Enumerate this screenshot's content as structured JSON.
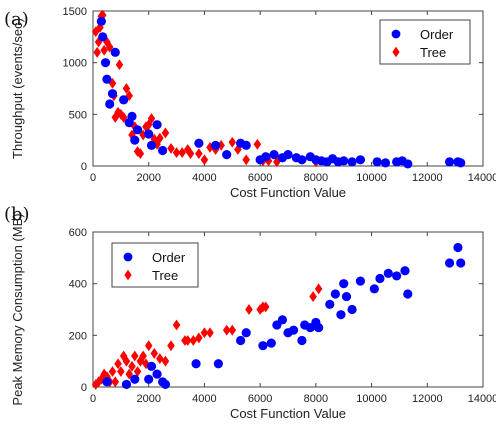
{
  "chart_data": [
    {
      "type": "scatter",
      "panel_label": "(a)",
      "xlabel": "Cost Function Value",
      "ylabel": "Throughput (events/sec)",
      "xlim": [
        0,
        14000
      ],
      "ylim": [
        0,
        1500
      ],
      "xticks": [
        0,
        2000,
        4000,
        6000,
        8000,
        10000,
        12000,
        14000
      ],
      "yticks": [
        0,
        500,
        1000,
        1500
      ],
      "legend": "top-right",
      "grid": false,
      "series": [
        {
          "name": "Order",
          "marker": "circle",
          "color": "#0000ff",
          "points": [
            [
              300,
              1400
            ],
            [
              350,
              1250
            ],
            [
              450,
              1000
            ],
            [
              500,
              840
            ],
            [
              600,
              600
            ],
            [
              700,
              700
            ],
            [
              800,
              1100
            ],
            [
              1100,
              640
            ],
            [
              1300,
              420
            ],
            [
              1400,
              480
            ],
            [
              1500,
              250
            ],
            [
              1600,
              350
            ],
            [
              2000,
              310
            ],
            [
              2100,
              200
            ],
            [
              2300,
              400
            ],
            [
              2500,
              150
            ],
            [
              3800,
              220
            ],
            [
              4400,
              200
            ],
            [
              4800,
              110
            ],
            [
              5300,
              220
            ],
            [
              5500,
              200
            ],
            [
              6000,
              60
            ],
            [
              6200,
              90
            ],
            [
              6500,
              110
            ],
            [
              6800,
              80
            ],
            [
              7000,
              110
            ],
            [
              7300,
              80
            ],
            [
              7500,
              60
            ],
            [
              7800,
              90
            ],
            [
              8000,
              60
            ],
            [
              8200,
              50
            ],
            [
              8400,
              40
            ],
            [
              8600,
              70
            ],
            [
              8800,
              40
            ],
            [
              9000,
              50
            ],
            [
              9300,
              40
            ],
            [
              9600,
              60
            ],
            [
              10200,
              40
            ],
            [
              10500,
              30
            ],
            [
              10900,
              40
            ],
            [
              11100,
              50
            ],
            [
              11300,
              20
            ],
            [
              12800,
              40
            ],
            [
              13100,
              40
            ],
            [
              13200,
              30
            ]
          ]
        },
        {
          "name": "Tree",
          "marker": "diamond",
          "color": "#ff0000",
          "points": [
            [
              100,
              1300
            ],
            [
              150,
              1100
            ],
            [
              200,
              1200
            ],
            [
              250,
              1340
            ],
            [
              300,
              1450
            ],
            [
              350,
              1460
            ],
            [
              400,
              1120
            ],
            [
              500,
              1200
            ],
            [
              600,
              1150
            ],
            [
              700,
              800
            ],
            [
              750,
              680
            ],
            [
              800,
              470
            ],
            [
              900,
              520
            ],
            [
              950,
              980
            ],
            [
              1000,
              500
            ],
            [
              1100,
              470
            ],
            [
              1200,
              750
            ],
            [
              1300,
              680
            ],
            [
              1400,
              300
            ],
            [
              1500,
              380
            ],
            [
              1600,
              140
            ],
            [
              1700,
              120
            ],
            [
              1800,
              300
            ],
            [
              1900,
              380
            ],
            [
              2000,
              400
            ],
            [
              2100,
              460
            ],
            [
              2200,
              260
            ],
            [
              2300,
              210
            ],
            [
              2400,
              270
            ],
            [
              2600,
              320
            ],
            [
              2800,
              170
            ],
            [
              3000,
              130
            ],
            [
              3200,
              130
            ],
            [
              3400,
              160
            ],
            [
              3500,
              120
            ],
            [
              3800,
              120
            ],
            [
              4000,
              60
            ],
            [
              4200,
              180
            ],
            [
              4400,
              160
            ],
            [
              4600,
              200
            ],
            [
              5000,
              230
            ],
            [
              5200,
              160
            ],
            [
              5500,
              60
            ],
            [
              5900,
              210
            ],
            [
              6100,
              50
            ],
            [
              6300,
              50
            ],
            [
              6600,
              40
            ],
            [
              8000,
              40
            ]
          ]
        }
      ]
    },
    {
      "type": "scatter",
      "panel_label": "(b)",
      "xlabel": "Cost Function Value",
      "ylabel": "Peak Memory Consumption (MB)",
      "xlim": [
        0,
        14000
      ],
      "ylim": [
        0,
        600
      ],
      "xticks": [
        0,
        2000,
        4000,
        6000,
        8000,
        10000,
        12000,
        14000
      ],
      "yticks": [
        0,
        200,
        400,
        600
      ],
      "legend": "top-left",
      "grid": false,
      "series": [
        {
          "name": "Order",
          "marker": "circle",
          "color": "#0000ff",
          "points": [
            [
              500,
              20
            ],
            [
              1200,
              10
            ],
            [
              1500,
              30
            ],
            [
              2000,
              30
            ],
            [
              2100,
              80
            ],
            [
              2300,
              50
            ],
            [
              2500,
              20
            ],
            [
              2600,
              10
            ],
            [
              3700,
              90
            ],
            [
              4500,
              90
            ],
            [
              5300,
              180
            ],
            [
              5500,
              210
            ],
            [
              6100,
              160
            ],
            [
              6400,
              170
            ],
            [
              6600,
              240
            ],
            [
              6800,
              260
            ],
            [
              7000,
              210
            ],
            [
              7200,
              220
            ],
            [
              7500,
              180
            ],
            [
              7600,
              240
            ],
            [
              7800,
              230
            ],
            [
              8000,
              250
            ],
            [
              8100,
              230
            ],
            [
              8500,
              320
            ],
            [
              8700,
              360
            ],
            [
              8900,
              280
            ],
            [
              9000,
              400
            ],
            [
              9100,
              350
            ],
            [
              9300,
              300
            ],
            [
              9600,
              410
            ],
            [
              10100,
              380
            ],
            [
              10300,
              420
            ],
            [
              10600,
              440
            ],
            [
              10900,
              430
            ],
            [
              11200,
              450
            ],
            [
              11300,
              360
            ],
            [
              12800,
              480
            ],
            [
              13100,
              540
            ],
            [
              13200,
              480
            ]
          ]
        },
        {
          "name": "Tree",
          "marker": "diamond",
          "color": "#ff0000",
          "points": [
            [
              100,
              10
            ],
            [
              200,
              20
            ],
            [
              300,
              30
            ],
            [
              400,
              50
            ],
            [
              500,
              40
            ],
            [
              600,
              20
            ],
            [
              700,
              60
            ],
            [
              800,
              20
            ],
            [
              900,
              90
            ],
            [
              1000,
              60
            ],
            [
              1100,
              120
            ],
            [
              1200,
              100
            ],
            [
              1300,
              50
            ],
            [
              1400,
              80
            ],
            [
              1500,
              120
            ],
            [
              1600,
              60
            ],
            [
              1700,
              100
            ],
            [
              1800,
              120
            ],
            [
              1900,
              90
            ],
            [
              2000,
              160
            ],
            [
              2200,
              130
            ],
            [
              2400,
              110
            ],
            [
              2600,
              100
            ],
            [
              2800,
              160
            ],
            [
              3000,
              240
            ],
            [
              3300,
              180
            ],
            [
              3400,
              180
            ],
            [
              3600,
              180
            ],
            [
              3800,
              190
            ],
            [
              4000,
              210
            ],
            [
              4200,
              210
            ],
            [
              4800,
              220
            ],
            [
              5000,
              220
            ],
            [
              5600,
              300
            ],
            [
              6000,
              300
            ],
            [
              6100,
              310
            ],
            [
              6200,
              310
            ],
            [
              7900,
              350
            ],
            [
              8100,
              380
            ]
          ]
        }
      ]
    }
  ]
}
